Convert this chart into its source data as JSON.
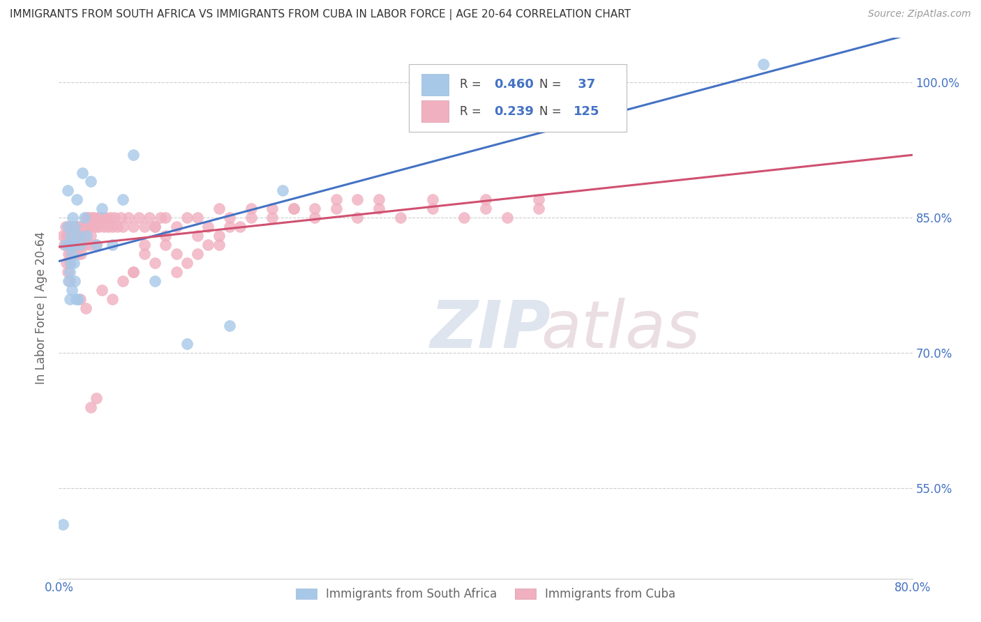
{
  "title": "IMMIGRANTS FROM SOUTH AFRICA VS IMMIGRANTS FROM CUBA IN LABOR FORCE | AGE 20-64 CORRELATION CHART",
  "source": "Source: ZipAtlas.com",
  "ylabel": "In Labor Force | Age 20-64",
  "xlim": [
    0.0,
    0.8
  ],
  "ylim": [
    0.45,
    1.05
  ],
  "y_tick_values": [
    0.55,
    0.7,
    0.85,
    1.0
  ],
  "y_tick_labels": [
    "55.0%",
    "70.0%",
    "85.0%",
    "100.0%"
  ],
  "x_tick_labels": [
    "0.0%",
    "80.0%"
  ],
  "color_blue": "#a8c8e8",
  "color_pink": "#f0b0c0",
  "line_blue": "#4472c4",
  "line_pink": "#d05070",
  "label_color": "#4472c4",
  "sa_x": [
    0.004,
    0.006,
    0.008,
    0.008,
    0.009,
    0.01,
    0.01,
    0.01,
    0.011,
    0.011,
    0.012,
    0.012,
    0.013,
    0.013,
    0.014,
    0.015,
    0.015,
    0.016,
    0.017,
    0.018,
    0.018,
    0.02,
    0.022,
    0.024,
    0.026,
    0.03,
    0.035,
    0.04,
    0.05,
    0.06,
    0.07,
    0.09,
    0.12,
    0.16,
    0.21,
    0.4,
    0.66
  ],
  "sa_y": [
    0.51,
    0.82,
    0.84,
    0.88,
    0.78,
    0.76,
    0.79,
    0.82,
    0.8,
    0.83,
    0.77,
    0.81,
    0.82,
    0.85,
    0.8,
    0.78,
    0.84,
    0.76,
    0.87,
    0.76,
    0.83,
    0.82,
    0.9,
    0.85,
    0.83,
    0.89,
    0.82,
    0.86,
    0.82,
    0.87,
    0.92,
    0.78,
    0.71,
    0.73,
    0.88,
    0.96,
    1.02
  ],
  "cuba_x": [
    0.004,
    0.005,
    0.006,
    0.007,
    0.007,
    0.008,
    0.008,
    0.009,
    0.009,
    0.01,
    0.01,
    0.01,
    0.01,
    0.011,
    0.011,
    0.011,
    0.012,
    0.012,
    0.013,
    0.013,
    0.014,
    0.014,
    0.015,
    0.015,
    0.015,
    0.016,
    0.016,
    0.017,
    0.018,
    0.018,
    0.019,
    0.02,
    0.02,
    0.021,
    0.021,
    0.022,
    0.022,
    0.023,
    0.024,
    0.025,
    0.025,
    0.026,
    0.027,
    0.028,
    0.03,
    0.03,
    0.031,
    0.032,
    0.033,
    0.035,
    0.035,
    0.037,
    0.038,
    0.04,
    0.042,
    0.044,
    0.046,
    0.048,
    0.05,
    0.052,
    0.055,
    0.058,
    0.06,
    0.065,
    0.07,
    0.075,
    0.08,
    0.085,
    0.09,
    0.095,
    0.1,
    0.11,
    0.12,
    0.13,
    0.14,
    0.15,
    0.16,
    0.18,
    0.2,
    0.22,
    0.24,
    0.26,
    0.28,
    0.3,
    0.32,
    0.35,
    0.38,
    0.4,
    0.42,
    0.45,
    0.07,
    0.08,
    0.09,
    0.1,
    0.11,
    0.13,
    0.15,
    0.17,
    0.02,
    0.025,
    0.03,
    0.035,
    0.04,
    0.05,
    0.06,
    0.07,
    0.08,
    0.09,
    0.1,
    0.11,
    0.12,
    0.13,
    0.14,
    0.15,
    0.16,
    0.18,
    0.2,
    0.22,
    0.24,
    0.26,
    0.28,
    0.3,
    0.35,
    0.4,
    0.45
  ],
  "cuba_y": [
    0.83,
    0.82,
    0.84,
    0.83,
    0.8,
    0.82,
    0.79,
    0.83,
    0.81,
    0.84,
    0.82,
    0.8,
    0.78,
    0.84,
    0.83,
    0.81,
    0.84,
    0.82,
    0.84,
    0.81,
    0.83,
    0.82,
    0.84,
    0.81,
    0.83,
    0.84,
    0.82,
    0.84,
    0.82,
    0.81,
    0.84,
    0.83,
    0.82,
    0.84,
    0.81,
    0.84,
    0.82,
    0.84,
    0.83,
    0.84,
    0.82,
    0.85,
    0.84,
    0.85,
    0.83,
    0.82,
    0.85,
    0.84,
    0.85,
    0.84,
    0.82,
    0.85,
    0.84,
    0.85,
    0.84,
    0.85,
    0.84,
    0.85,
    0.84,
    0.85,
    0.84,
    0.85,
    0.84,
    0.85,
    0.84,
    0.85,
    0.84,
    0.85,
    0.84,
    0.85,
    0.85,
    0.84,
    0.85,
    0.85,
    0.84,
    0.86,
    0.85,
    0.86,
    0.85,
    0.86,
    0.85,
    0.86,
    0.85,
    0.86,
    0.85,
    0.86,
    0.85,
    0.86,
    0.85,
    0.86,
    0.79,
    0.81,
    0.8,
    0.82,
    0.81,
    0.83,
    0.82,
    0.84,
    0.76,
    0.75,
    0.64,
    0.65,
    0.77,
    0.76,
    0.78,
    0.79,
    0.82,
    0.84,
    0.83,
    0.79,
    0.8,
    0.81,
    0.82,
    0.83,
    0.84,
    0.85,
    0.86,
    0.86,
    0.86,
    0.87,
    0.87,
    0.87,
    0.87,
    0.87,
    0.87
  ]
}
